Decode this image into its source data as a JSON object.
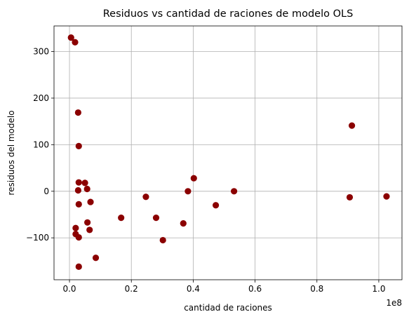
{
  "chart_data": {
    "type": "scatter",
    "title": "Residuos vs cantidad de raciones de modelo OLS",
    "xlabel": "cantidad de raciones",
    "ylabel": "residuos del modelo",
    "x_offset_label": "1e8",
    "xlim": [
      -0.05,
      1.075
    ],
    "ylim": [
      -190,
      355
    ],
    "xticks": [
      0.0,
      0.2,
      0.4,
      0.6,
      0.8,
      1.0
    ],
    "xtick_labels": [
      "0.0",
      "0.2",
      "0.4",
      "0.6",
      "0.8",
      "1.0"
    ],
    "yticks": [
      -100,
      0,
      100,
      200,
      300
    ],
    "ytick_labels": [
      "−100",
      "0",
      "100",
      "200",
      "300"
    ],
    "grid": true,
    "marker_color": "#8b0000",
    "points": [
      {
        "x": 0.005,
        "y": 330
      },
      {
        "x": 0.018,
        "y": 320
      },
      {
        "x": 0.028,
        "y": 169
      },
      {
        "x": 0.03,
        "y": 97
      },
      {
        "x": 0.03,
        "y": 19
      },
      {
        "x": 0.028,
        "y": 2
      },
      {
        "x": 0.03,
        "y": -28
      },
      {
        "x": 0.02,
        "y": -79
      },
      {
        "x": 0.02,
        "y": -92
      },
      {
        "x": 0.03,
        "y": -99
      },
      {
        "x": 0.03,
        "y": -162
      },
      {
        "x": 0.05,
        "y": 18
      },
      {
        "x": 0.057,
        "y": 5
      },
      {
        "x": 0.068,
        "y": -23
      },
      {
        "x": 0.058,
        "y": -67
      },
      {
        "x": 0.065,
        "y": -83
      },
      {
        "x": 0.085,
        "y": -143
      },
      {
        "x": 0.167,
        "y": -57
      },
      {
        "x": 0.247,
        "y": -12
      },
      {
        "x": 0.28,
        "y": -57
      },
      {
        "x": 0.302,
        "y": -105
      },
      {
        "x": 0.368,
        "y": -69
      },
      {
        "x": 0.383,
        "y": 0
      },
      {
        "x": 0.402,
        "y": 28
      },
      {
        "x": 0.473,
        "y": -30
      },
      {
        "x": 0.532,
        "y": 0
      },
      {
        "x": 0.906,
        "y": -13
      },
      {
        "x": 0.913,
        "y": 141
      },
      {
        "x": 1.025,
        "y": -11
      }
    ]
  }
}
